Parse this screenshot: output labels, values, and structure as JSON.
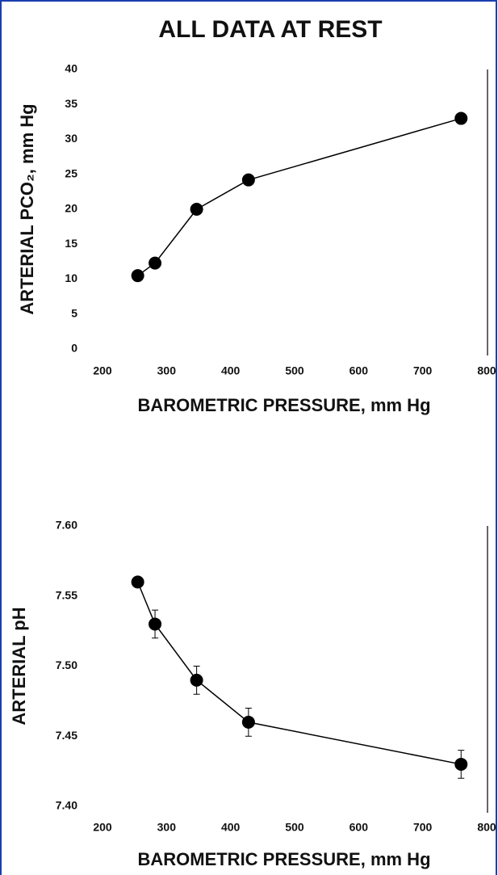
{
  "chart_data": [
    {
      "type": "line",
      "title": "ALL DATA AT REST",
      "x_label": "BAROMETRIC PRESSURE, mm Hg",
      "y_label": "ARTERIAL PCO₂, mm Hg",
      "x": [
        255,
        282,
        347,
        428,
        760
      ],
      "series": [
        {
          "name": "PCO2",
          "color": "#000000",
          "values": [
            10.5,
            12.3,
            20,
            24.2,
            33
          ]
        }
      ],
      "xlim": [
        200,
        800
      ],
      "xticks": [
        200,
        300,
        400,
        500,
        600,
        700,
        800
      ],
      "ylim": [
        0,
        40
      ],
      "yticks": [
        0,
        5,
        10,
        15,
        20,
        25,
        30,
        35,
        40
      ]
    },
    {
      "type": "line",
      "x_label": "BAROMETRIC PRESSURE, mm Hg",
      "y_label": "ARTERIAL pH",
      "x": [
        255,
        282,
        347,
        428,
        760
      ],
      "series": [
        {
          "name": "pH",
          "color": "#000000",
          "values": [
            7.56,
            7.53,
            7.49,
            7.46,
            7.43
          ],
          "errors": [
            0,
            0.01,
            0.01,
            0.01,
            0.01
          ]
        }
      ],
      "xlim": [
        200,
        800
      ],
      "xticks": [
        200,
        300,
        400,
        500,
        600,
        700,
        800
      ],
      "ylim": [
        7.4,
        7.6
      ],
      "yticks": [
        {
          "value": 7.4,
          "label": "7.40"
        },
        {
          "value": 7.45,
          "label": "7.45"
        },
        {
          "value": 7.5,
          "label": "7.50"
        },
        {
          "value": 7.55,
          "label": "7.55"
        },
        {
          "value": 7.6,
          "label": "7.60"
        }
      ]
    }
  ]
}
